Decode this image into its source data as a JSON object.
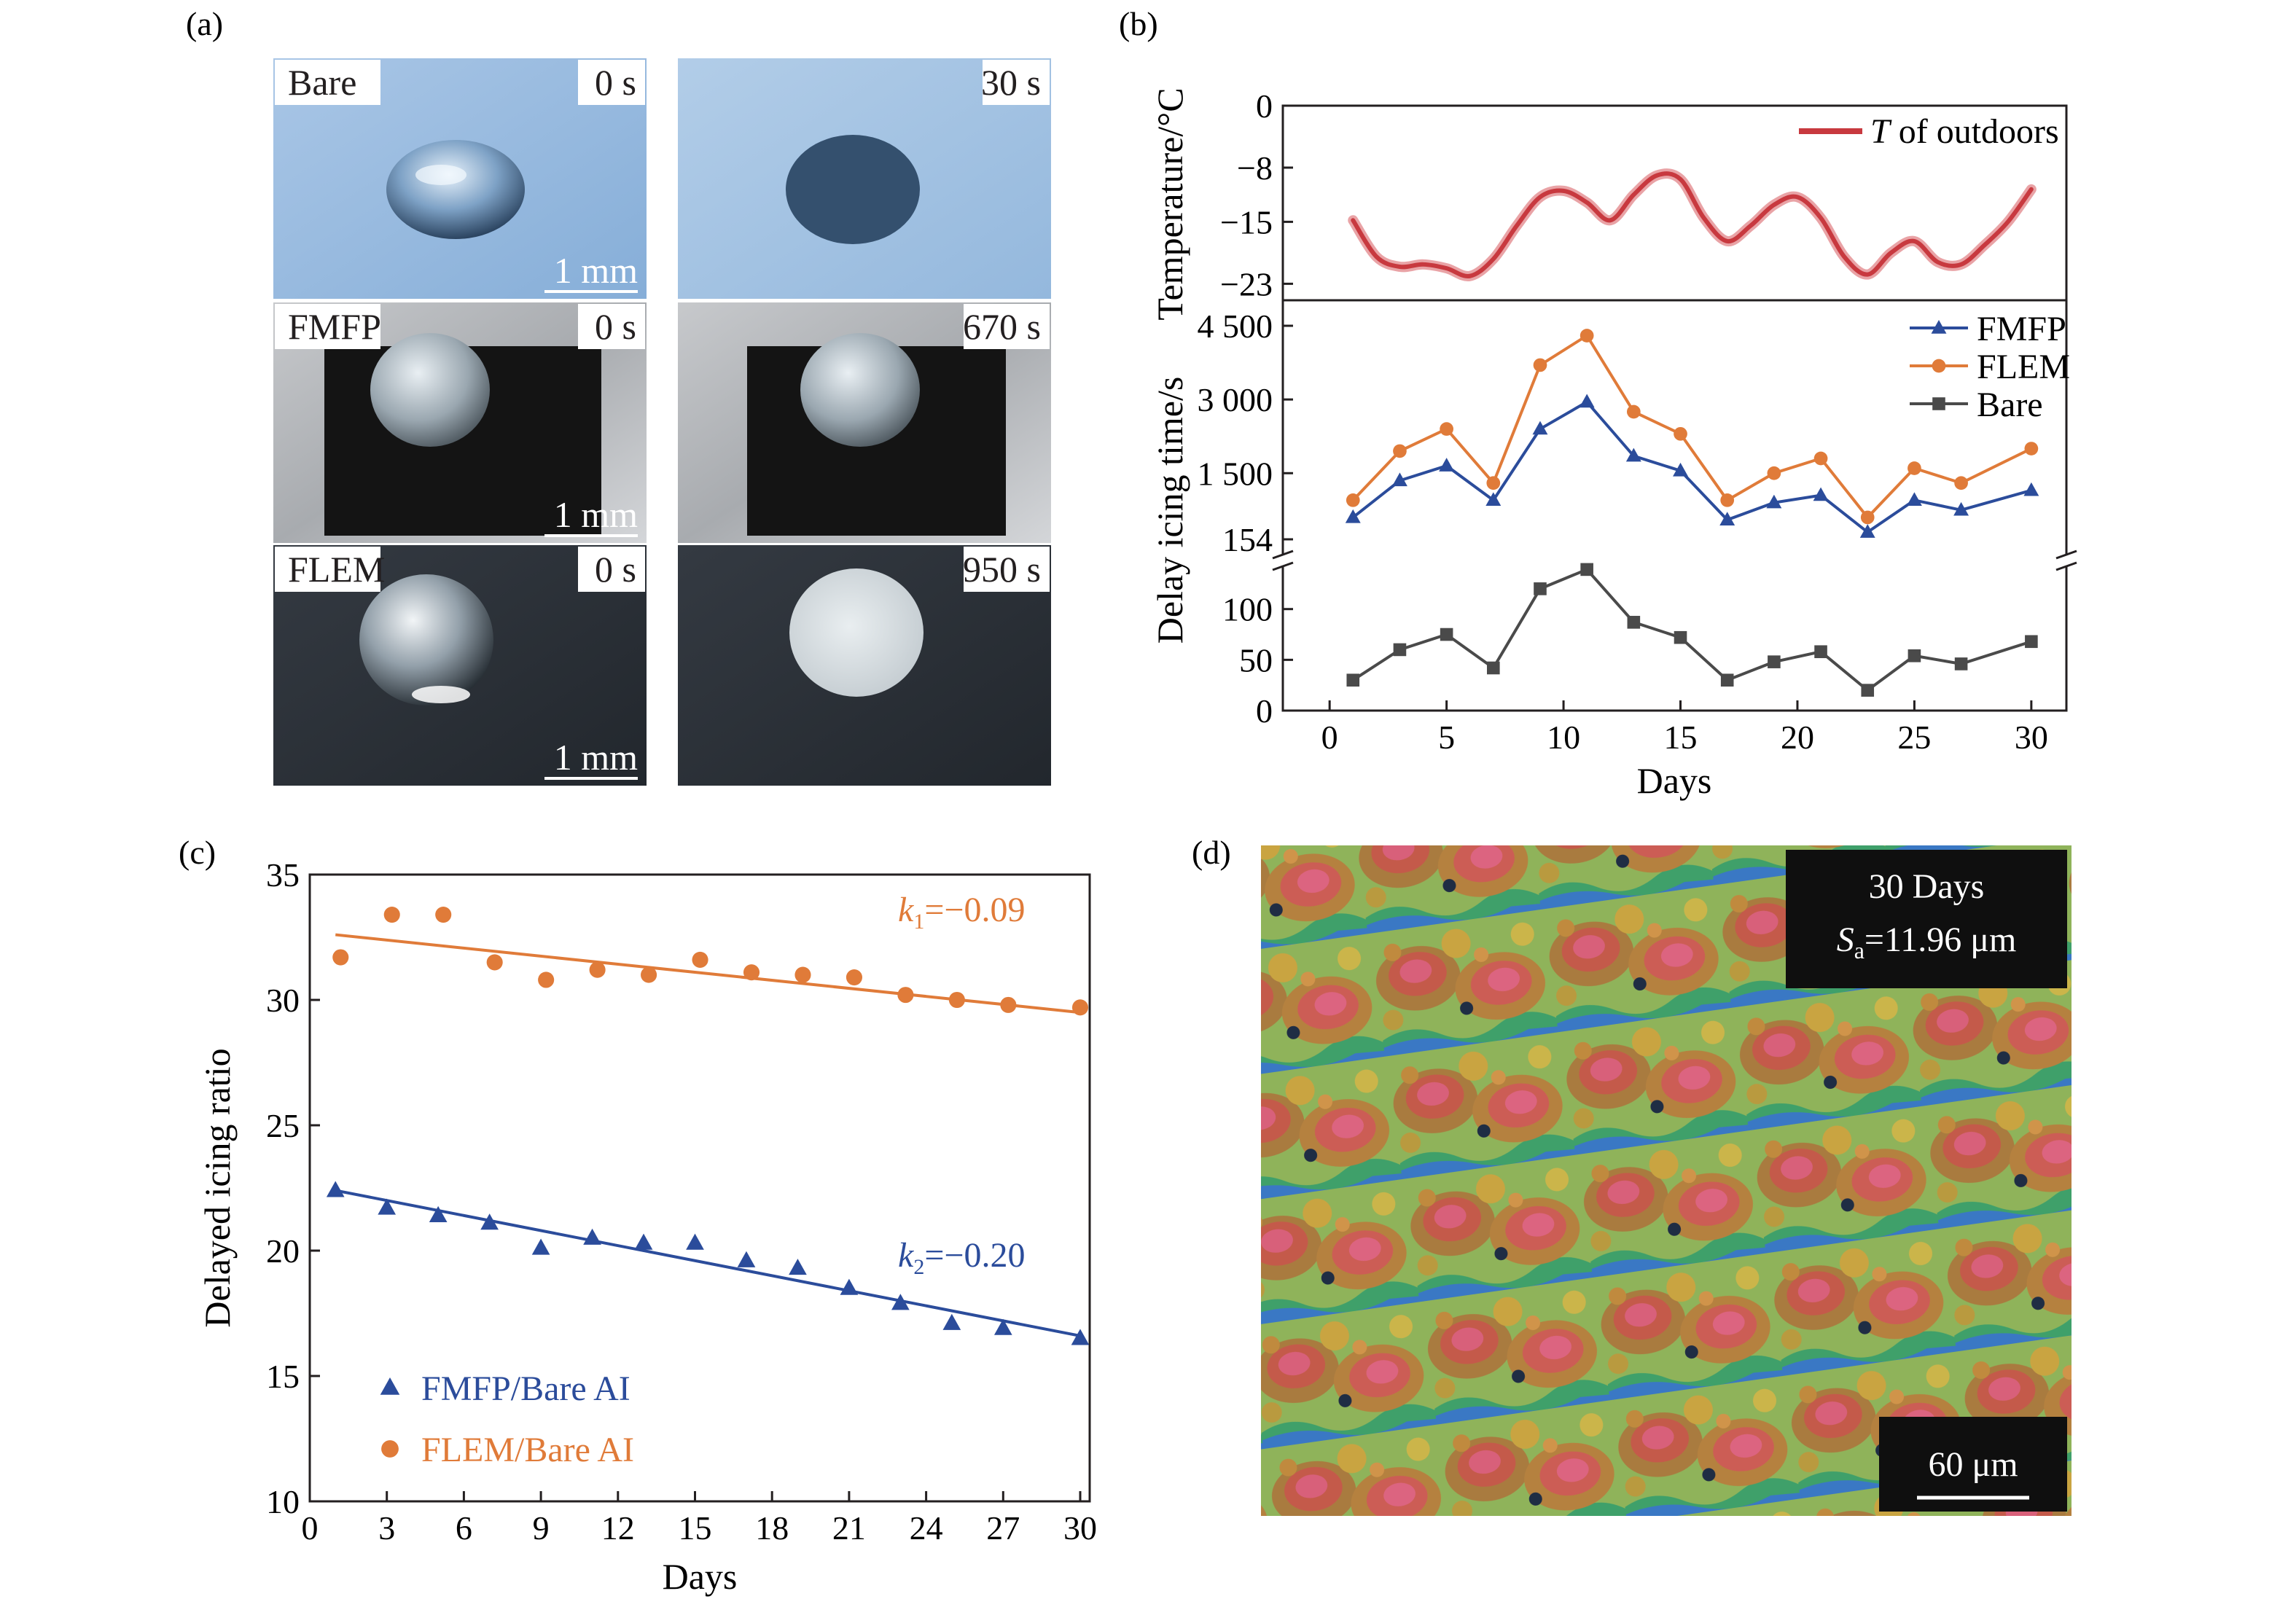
{
  "panels": {
    "a": {
      "letter": "(a)",
      "tiles": [
        {
          "sample": "Bare",
          "time": "0 s",
          "scale": "1 mm"
        },
        {
          "sample": "",
          "time": "30 s",
          "scale": ""
        },
        {
          "sample": "FMFP",
          "time": "0 s",
          "scale": "1 mm"
        },
        {
          "sample": "",
          "time": "670 s",
          "scale": ""
        },
        {
          "sample": "FLEM",
          "time": "0 s",
          "scale": "1 mm"
        },
        {
          "sample": "",
          "time": "950 s",
          "scale": ""
        }
      ]
    },
    "b": {
      "letter": "(b)"
    },
    "c": {
      "letter": "(c)"
    },
    "d": {
      "letter": "(d)",
      "caption_line1": "30 Days",
      "sa_symbol": "S",
      "sa_sub": "a",
      "sa_value": "=11.96 μm",
      "scale": "60 μm"
    }
  },
  "chart_data": [
    {
      "id": "b-temperature",
      "type": "line",
      "ylabel": "Temperature/°C",
      "yticks": [
        "0",
        "−8",
        "−15",
        "−23"
      ],
      "ytick_values": [
        0,
        -8,
        -15,
        -23
      ],
      "ylim": [
        -24,
        0
      ],
      "xlim": [
        -2,
        31.5
      ],
      "legend": {
        "position": "top-right",
        "entries": [
          {
            "symbol": "T",
            "text": " of outdoors"
          }
        ]
      },
      "series": [
        {
          "name": "T of outdoors",
          "color": "#c8393f",
          "x": [
            1,
            2,
            3,
            4,
            5,
            6,
            7,
            8,
            9,
            10,
            11,
            12,
            13,
            14,
            15,
            16,
            17,
            18,
            19,
            20,
            21,
            22,
            23,
            24,
            25,
            26,
            27,
            28,
            29,
            30
          ],
          "y": [
            -14.8,
            -19.5,
            -20.8,
            -20.5,
            -21.0,
            -22.0,
            -19.8,
            -15.5,
            -11.8,
            -11.0,
            -12.5,
            -14.8,
            -11.5,
            -9.0,
            -9.5,
            -14.5,
            -17.5,
            -15.5,
            -12.8,
            -11.8,
            -14.5,
            -19.5,
            -21.8,
            -19.0,
            -17.5,
            -20.2,
            -20.5,
            -18.0,
            -15.0,
            -10.8
          ]
        }
      ]
    },
    {
      "id": "b-delay",
      "type": "line",
      "ylabel": "Delay icing time/s",
      "xlabel": "Days",
      "xticks": [
        "0",
        "5",
        "10",
        "15",
        "20",
        "25",
        "30"
      ],
      "xtick_values": [
        0,
        5,
        10,
        15,
        20,
        25,
        30
      ],
      "xlim": [
        -2,
        31.5
      ],
      "upper_yticks": [
        "4 500",
        "3 000",
        "1 500",
        "154"
      ],
      "upper_ytick_values": [
        4500,
        3000,
        1500,
        154
      ],
      "upper_ylim": [
        154,
        4500
      ],
      "lower_yticks": [
        "100",
        "50",
        "0"
      ],
      "lower_ytick_values": [
        100,
        50,
        0
      ],
      "lower_ylim": [
        0,
        140
      ],
      "legend": {
        "position": "top-right"
      },
      "x": [
        1,
        3,
        5,
        7,
        9,
        11,
        13,
        15,
        17,
        19,
        21,
        23,
        25,
        27,
        30
      ],
      "series": [
        {
          "name": "FMFP",
          "color": "#2b4c9b",
          "marker": "triangle",
          "values": [
            600,
            1350,
            1650,
            950,
            2400,
            2950,
            1850,
            1550,
            550,
            900,
            1050,
            300,
            950,
            750,
            1150
          ]
        },
        {
          "name": "FLEM",
          "color": "#e07b39",
          "marker": "circle",
          "values": [
            950,
            1950,
            2400,
            1300,
            3700,
            4300,
            2750,
            2300,
            950,
            1500,
            1800,
            600,
            1600,
            1300,
            2000
          ]
        },
        {
          "name": "Bare",
          "color": "#4a4a4a",
          "marker": "square",
          "values": [
            30,
            60,
            75,
            42,
            120,
            139,
            87,
            72,
            30,
            48,
            58,
            20,
            54,
            46,
            68
          ]
        }
      ]
    },
    {
      "id": "c",
      "type": "scatter",
      "xlabel": "Days",
      "ylabel": "Delayed icing ratio",
      "xticks": [
        "0",
        "3",
        "6",
        "9",
        "12",
        "15",
        "18",
        "21",
        "24",
        "27",
        "30"
      ],
      "xtick_values": [
        0,
        3,
        6,
        9,
        12,
        15,
        18,
        21,
        24,
        27,
        30
      ],
      "yticks": [
        "35",
        "30",
        "25",
        "20",
        "15",
        "10"
      ],
      "ytick_values": [
        35,
        30,
        25,
        20,
        15,
        10
      ],
      "xlim": [
        0,
        30.5
      ],
      "ylim": [
        10,
        35
      ],
      "legend": {
        "position": "bottom-left"
      },
      "series": [
        {
          "name": "FMFP/Bare AI",
          "color": "#2b4c9b",
          "marker": "triangle",
          "x": [
            1,
            3,
            5,
            7,
            9,
            11,
            13,
            15,
            17,
            19,
            21,
            23,
            25,
            27,
            30
          ],
          "y": [
            22.4,
            21.7,
            21.4,
            21.1,
            20.1,
            20.5,
            20.3,
            20.3,
            19.6,
            19.3,
            18.5,
            17.9,
            17.1,
            16.9,
            16.5
          ],
          "fit": {
            "x": [
              1,
              30
            ],
            "y": [
              22.4,
              16.6
            ]
          },
          "slope_symbol": "k",
          "slope_sub": "2",
          "slope_text": "=−0.20"
        },
        {
          "name": "FLEM/Bare AI",
          "color": "#e07b39",
          "marker": "circle",
          "x": [
            1.2,
            3.2,
            5.2,
            7.2,
            9.2,
            11.2,
            13.2,
            15.2,
            17.2,
            19.2,
            21.2,
            23.2,
            25.2,
            27.2,
            30
          ],
          "y": [
            31.7,
            33.4,
            33.4,
            31.5,
            30.8,
            31.2,
            31.0,
            31.6,
            31.1,
            31.0,
            30.9,
            30.2,
            30.0,
            29.8,
            29.7
          ],
          "fit": {
            "x": [
              1,
              30
            ],
            "y": [
              32.6,
              29.5
            ]
          },
          "slope_symbol": "k",
          "slope_sub": "1",
          "slope_text": "=−0.09"
        }
      ]
    }
  ]
}
